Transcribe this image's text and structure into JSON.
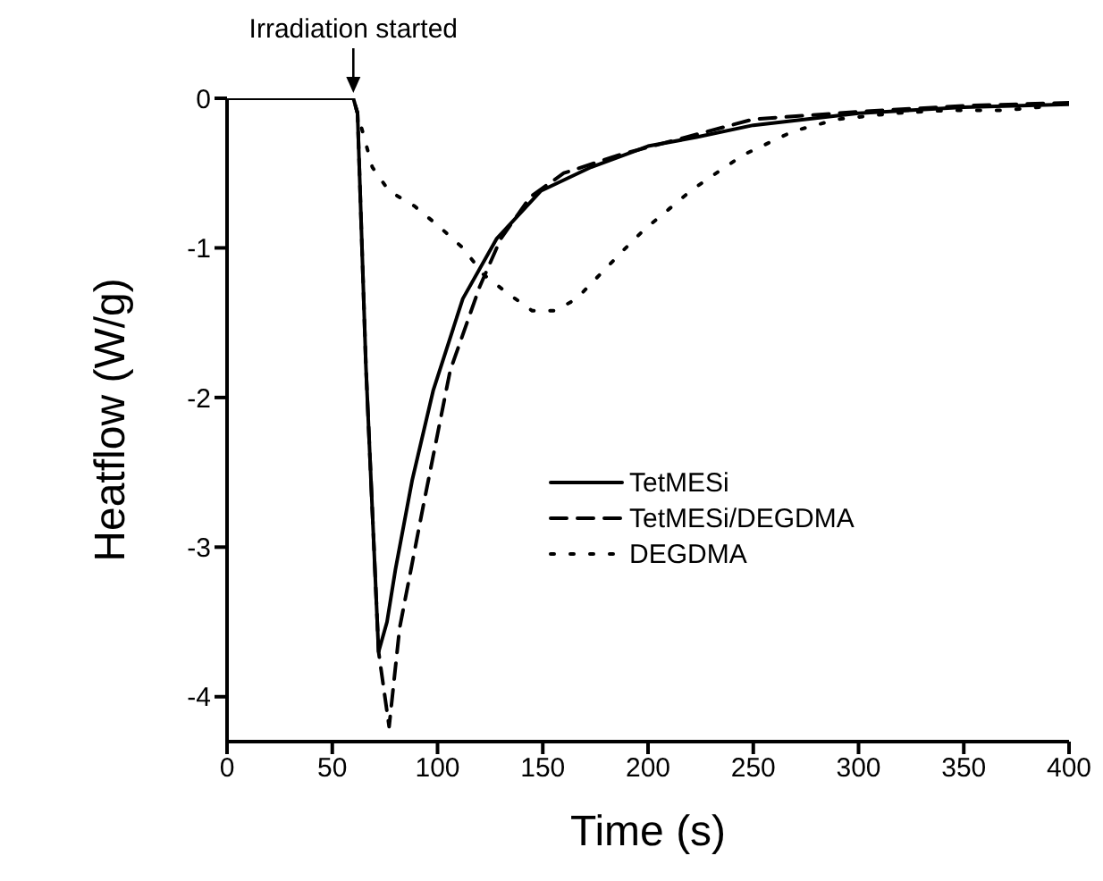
{
  "chart_data": {
    "type": "line",
    "xlabel": "Time (s)",
    "ylabel": "Heatflow (W/g)",
    "xlim": [
      0,
      400
    ],
    "xticks": [
      0,
      50,
      100,
      150,
      200,
      250,
      300,
      350,
      400
    ],
    "ylim": [
      -4.3,
      0
    ],
    "yticks": [
      -4,
      -3,
      -2,
      -1,
      0
    ],
    "legend": "right",
    "marker": "none",
    "annotations": [
      {
        "text": "Irradiation started",
        "x": 60,
        "y": 0
      }
    ],
    "series": [
      {
        "name": "TetMESi",
        "color": "#000000",
        "line_style": "solid",
        "x": [
          0,
          60,
          62,
          66,
          72,
          76,
          80,
          88,
          98,
          112,
          128,
          149,
          173,
          200,
          223,
          250,
          300,
          350,
          400
        ],
        "values": [
          0,
          0,
          -0.1,
          -1.8,
          -3.7,
          -3.5,
          -3.15,
          -2.55,
          -1.95,
          -1.34,
          -0.94,
          -0.62,
          -0.46,
          -0.32,
          -0.26,
          -0.18,
          -0.1,
          -0.06,
          -0.04
        ]
      },
      {
        "name": "TetMESi/DEGDMA",
        "color": "#000000",
        "line_style": "dashed",
        "x": [
          0,
          60,
          62,
          66,
          72,
          77,
          82,
          93,
          106,
          120,
          130,
          144,
          160,
          186,
          250,
          300,
          350,
          400
        ],
        "values": [
          0,
          0,
          -0.1,
          -1.8,
          -3.7,
          -4.2,
          -3.54,
          -2.74,
          -1.82,
          -1.26,
          -0.94,
          -0.66,
          -0.5,
          -0.38,
          -0.14,
          -0.09,
          -0.05,
          -0.03
        ]
      },
      {
        "name": "DEGDMA",
        "color": "#000000",
        "line_style": "dotted",
        "x": [
          0,
          60,
          62,
          69,
          77,
          89,
          101,
          112,
          122,
          133,
          145,
          156,
          166,
          177,
          188,
          198,
          210,
          221,
          245,
          269,
          290,
          317,
          343,
          370,
          393
        ],
        "values": [
          0,
          0,
          -0.1,
          -0.46,
          -0.62,
          -0.72,
          -0.86,
          -1.0,
          -1.18,
          -1.3,
          -1.42,
          -1.42,
          -1.34,
          -1.18,
          -1.02,
          -0.88,
          -0.74,
          -0.61,
          -0.38,
          -0.22,
          -0.14,
          -0.1,
          -0.08,
          -0.08,
          -0.05
        ]
      }
    ]
  }
}
